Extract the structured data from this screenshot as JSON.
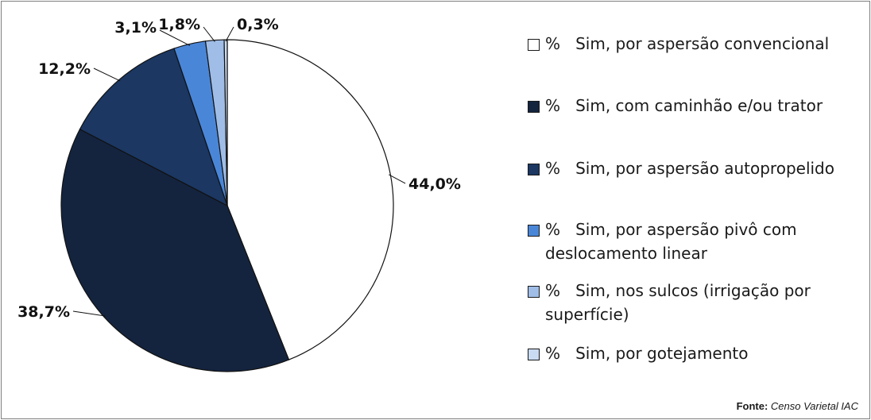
{
  "chart_data": {
    "type": "pie",
    "title": "",
    "slices": [
      {
        "label": "44,0%",
        "value": 44.0,
        "color": "#ffffff"
      },
      {
        "label": "38,7%",
        "value": 38.7,
        "color": "#14243f"
      },
      {
        "label": "12,2%",
        "value": 12.2,
        "color": "#1b3762"
      },
      {
        "label": "3,1%",
        "value": 3.1,
        "color": "#4a86d8"
      },
      {
        "label": "1,8%",
        "value": 1.8,
        "color": "#9fbde6"
      },
      {
        "label": "0,3%",
        "value": 0.3,
        "color": "#c9dbf2"
      }
    ],
    "legend_placement": "right",
    "legend": [
      {
        "prefix": "%",
        "text": "Sim, por aspersão convencional",
        "color": "#ffffff"
      },
      {
        "prefix": "%",
        "text": "Sim, com caminhão e/ou trator",
        "color": "#14243f"
      },
      {
        "prefix": "%",
        "text": "Sim, por aspersão autopropelido",
        "color": "#1b3762"
      },
      {
        "prefix": "%",
        "text": "Sim, por aspersão pivô com deslocamento linear",
        "color": "#4a86d8"
      },
      {
        "prefix": "%",
        "text": "Sim, nos sulcos (irrigação por superfície)",
        "color": "#9fbde6"
      },
      {
        "prefix": "%",
        "text": "Sim, por gotejamento",
        "color": "#c9dbf2"
      }
    ]
  },
  "source": {
    "label": "Fonte:",
    "text": "Censo Varietal IAC"
  }
}
